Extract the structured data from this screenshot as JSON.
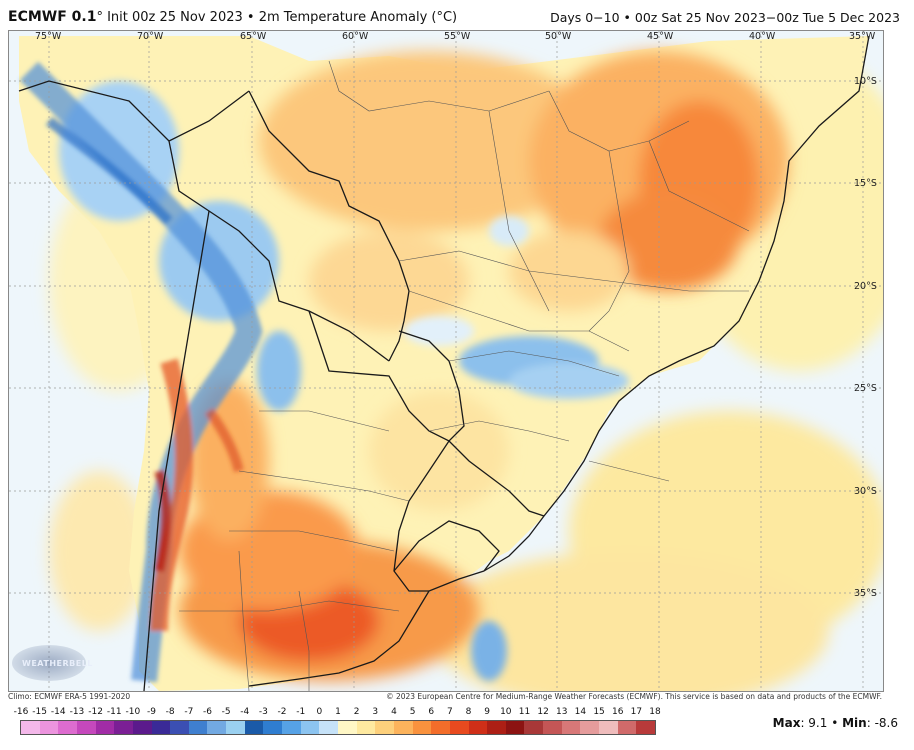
{
  "header": {
    "model": "ECMWF 0.1",
    "degree_mark": "°",
    "title_rest": " Init 00z 25 Nov 2023 • 2m Temperature Anomaly (°C)",
    "period": "Days 0−10 • 00z Sat 25 Nov 2023−00z Tue 5 Dec 2023"
  },
  "map": {
    "lon_labels": [
      "75°W",
      "70°W",
      "65°W",
      "60°W",
      "55°W",
      "50°W",
      "45°W",
      "40°W",
      "35°W"
    ],
    "lat_labels": [
      "10°S",
      "15°S",
      "20°S",
      "25°S",
      "30°S",
      "35°S"
    ]
  },
  "credits": {
    "climo": "Climo: ECMWF ERA-5 1991-2020",
    "copyright": "© 2023 European Centre for Medium-Range Weather Forecasts (ECMWF). This service is based on data and products of the ECMWF."
  },
  "logo": {
    "text": "WEATHERBELL"
  },
  "colorbar": {
    "ticks": [
      "-16",
      "-15",
      "-14",
      "-13",
      "-12",
      "-11",
      "-10",
      "-9",
      "-8",
      "-7",
      "-6",
      "-5",
      "-4",
      "-3",
      "-2",
      "-1",
      "0",
      "1",
      "2",
      "3",
      "4",
      "5",
      "6",
      "7",
      "8",
      "9",
      "10",
      "11",
      "12",
      "13",
      "14",
      "15",
      "16",
      "17",
      "18"
    ],
    "colors": [
      "#f4b8ea",
      "#ec94de",
      "#dd6ccf",
      "#c548bc",
      "#a12ca6",
      "#7b1f95",
      "#5b1a8c",
      "#3a2a97",
      "#3b4fb3",
      "#3f7fcf",
      "#72a9e2",
      "#9ad0f0",
      "#1a5aa8",
      "#2f7dd0",
      "#56a2e6",
      "#8cc4f0",
      "#c6e2f8",
      "#fff7c6",
      "#fee9a0",
      "#fdd07c",
      "#fcb35c",
      "#f9923e",
      "#f36d2a",
      "#e84a1f",
      "#cf2f18",
      "#ad1f15",
      "#8c1312",
      "#a83838",
      "#c45656",
      "#d87878",
      "#e59c9c",
      "#efbcbc",
      "#d06a6a",
      "#b83a3a"
    ]
  },
  "stats": {
    "max_label": "Max",
    "max_value": "9.1",
    "sep": " • ",
    "min_label": "Min",
    "min_value": "-8.6"
  }
}
